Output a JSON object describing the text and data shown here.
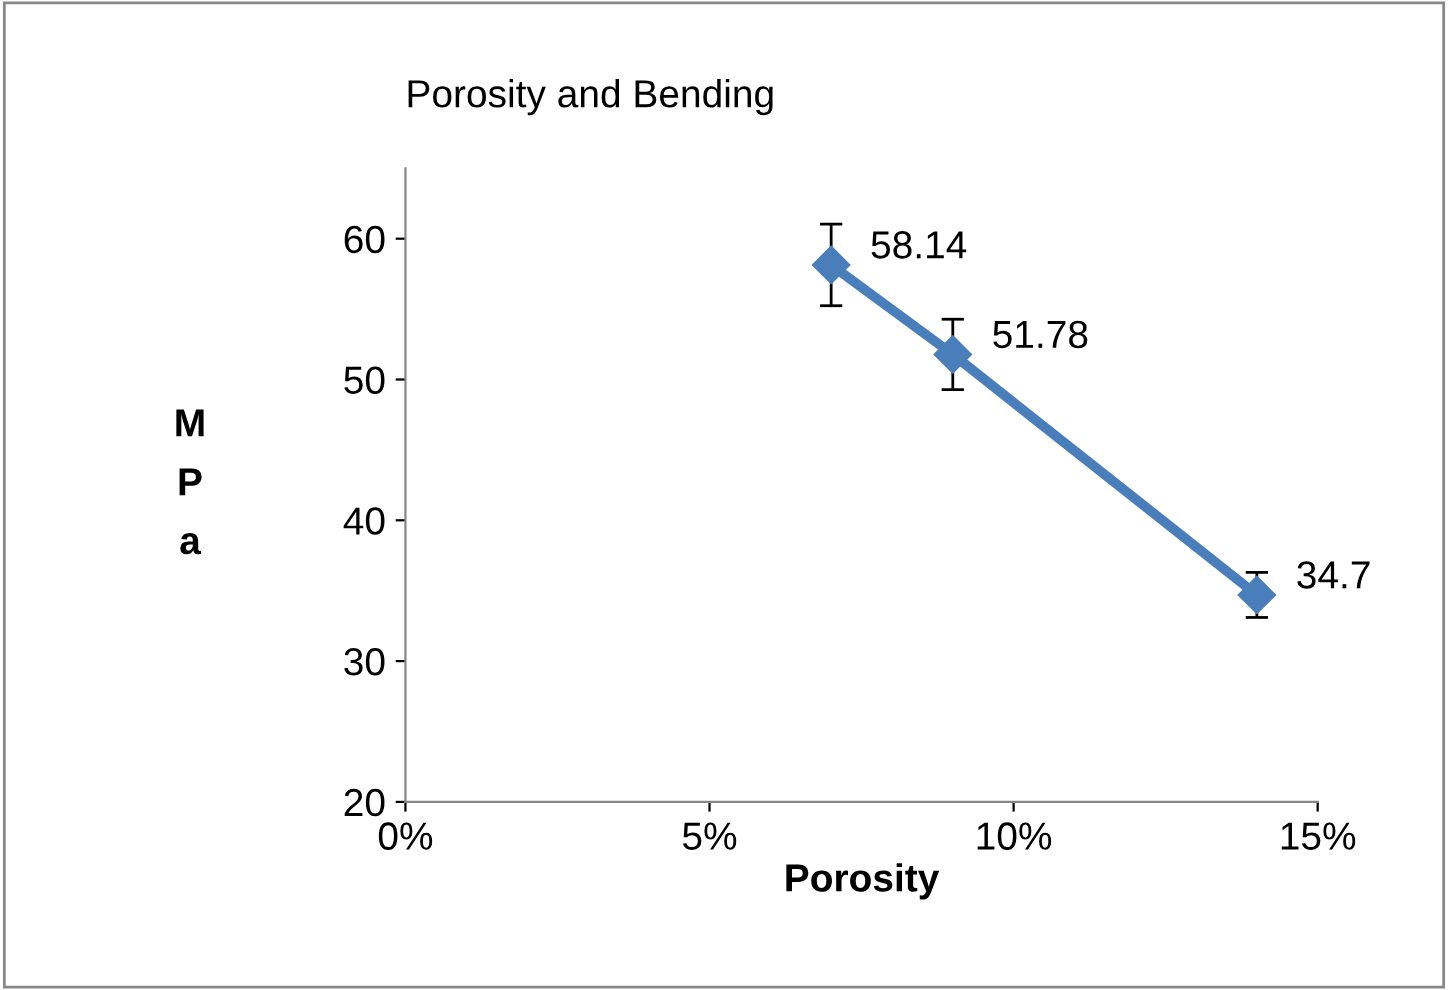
{
  "chart_data": {
    "type": "line",
    "title": "Porosity and Bending",
    "xlabel": "Porosity",
    "ylabel": "M\nP\na",
    "x": [
      7,
      9,
      14
    ],
    "series": [
      {
        "color": "#4a7ebb",
        "values": [
          58.14,
          51.78,
          34.7
        ],
        "errors": [
          2.9,
          2.5,
          1.6
        ]
      }
    ],
    "xlim": [
      0,
      15
    ],
    "xticks": [
      {
        "value": 0,
        "label": "0%"
      },
      {
        "value": 5,
        "label": "5%"
      },
      {
        "value": 10,
        "label": "10%"
      },
      {
        "value": 15,
        "label": "15%"
      }
    ],
    "ylim": [
      20,
      65
    ],
    "yticks": [
      20,
      30,
      40,
      50,
      60
    ],
    "marker": "diamond",
    "line_style": "solid",
    "grid": false,
    "legend": false,
    "data_labels": true
  }
}
